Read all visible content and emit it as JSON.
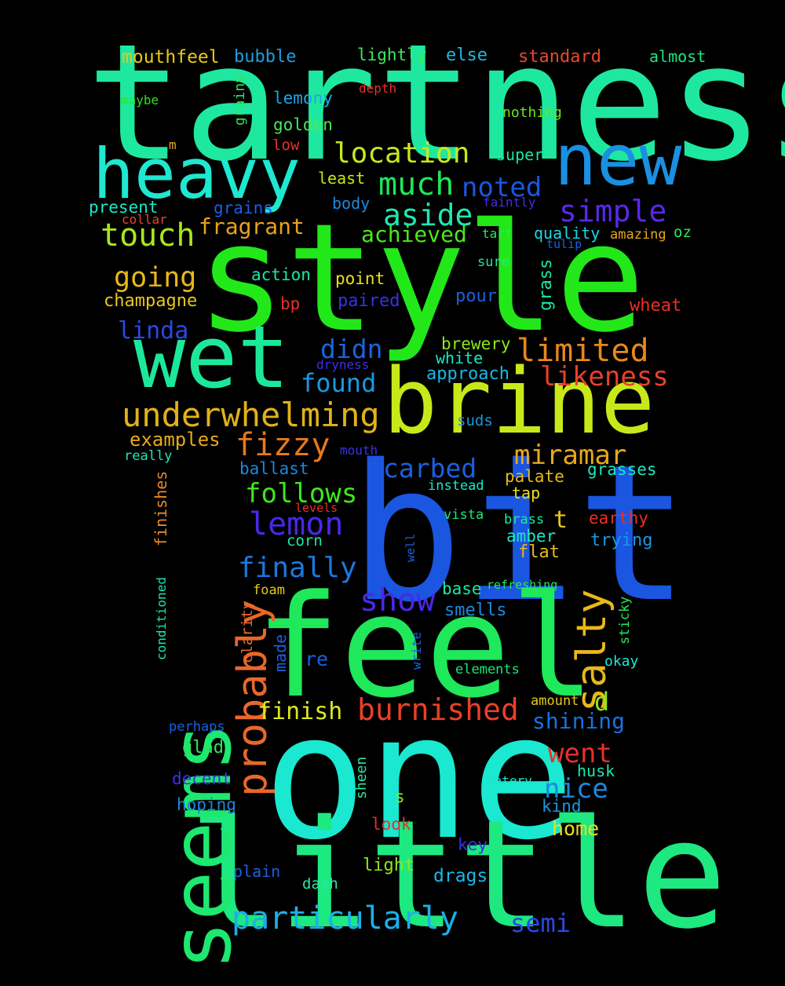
{
  "words": [
    {
      "text": "tartness",
      "color": "#1ee8a0",
      "rotate": false
    },
    {
      "text": "style",
      "color": "#22e81a",
      "rotate": false
    },
    {
      "text": "bit",
      "color": "#1a56e0",
      "rotate": false
    },
    {
      "text": "one",
      "color": "#1ae8d0",
      "rotate": false
    },
    {
      "text": "feel",
      "color": "#1fe85a",
      "rotate": false
    },
    {
      "text": "little",
      "color": "#1ee880",
      "rotate": false
    },
    {
      "text": "wet",
      "color": "#1de89a",
      "rotate": false
    },
    {
      "text": "brine",
      "color": "#c8e81a",
      "rotate": false
    },
    {
      "text": "seems",
      "color": "#1de870",
      "rotate": true
    },
    {
      "text": "heavy",
      "color": "#1ee8d0",
      "rotate": false
    },
    {
      "text": "new",
      "color": "#1a90e0",
      "rotate": false
    },
    {
      "text": "underwhelming",
      "color": "#e0b21a",
      "rotate": false
    },
    {
      "text": "particularly",
      "color": "#1ab0e8",
      "rotate": false
    },
    {
      "text": "location",
      "color": "#c8e81a",
      "rotate": false
    },
    {
      "text": "much",
      "color": "#1de85a",
      "rotate": false
    },
    {
      "text": "aside",
      "color": "#1ee8b0",
      "rotate": false
    },
    {
      "text": "touch",
      "color": "#a8e81a",
      "rotate": false
    },
    {
      "text": "noted",
      "color": "#1a56e0",
      "rotate": false
    },
    {
      "text": "simple",
      "color": "#5a28e8",
      "rotate": false
    },
    {
      "text": "fragrant",
      "color": "#e8a21a",
      "rotate": false
    },
    {
      "text": "achieved",
      "color": "#4ce81a",
      "rotate": false
    },
    {
      "text": "going",
      "color": "#e8b81a",
      "rotate": false
    },
    {
      "text": "limited",
      "color": "#e8881a",
      "rotate": false
    },
    {
      "text": "likeness",
      "color": "#e8402a",
      "rotate": false
    },
    {
      "text": "didn",
      "color": "#1a64e0",
      "rotate": false
    },
    {
      "text": "found",
      "color": "#1a98e0",
      "rotate": false
    },
    {
      "text": "fizzy",
      "color": "#e8781a",
      "rotate": false
    },
    {
      "text": "miramar",
      "color": "#e8a81a",
      "rotate": false
    },
    {
      "text": "carbed",
      "color": "#1a60e0",
      "rotate": false
    },
    {
      "text": "follows",
      "color": "#3ee81a",
      "rotate": false
    },
    {
      "text": "lemon",
      "color": "#4a28e8",
      "rotate": false
    },
    {
      "text": "finally",
      "color": "#1a78e0",
      "rotate": false
    },
    {
      "text": "show",
      "color": "#4a28e8",
      "rotate": false
    },
    {
      "text": "salty",
      "color": "#e8b81a",
      "rotate": true
    },
    {
      "text": "probably",
      "color": "#e8682a",
      "rotate": true
    },
    {
      "text": "burnished",
      "color": "#e8402a",
      "rotate": false
    },
    {
      "text": "went",
      "color": "#e8302a",
      "rotate": false
    },
    {
      "text": "nice",
      "color": "#1a88e0",
      "rotate": false
    },
    {
      "text": "semi",
      "color": "#2a48e8",
      "rotate": false
    },
    {
      "text": "finish",
      "color": "#dce81a",
      "rotate": false
    },
    {
      "text": "shining",
      "color": "#1a70e0",
      "rotate": false
    },
    {
      "text": "mouthfeel",
      "color": "#e8c81a",
      "rotate": false
    },
    {
      "text": "bubble",
      "color": "#1aa0e0",
      "rotate": false
    },
    {
      "text": "lightly",
      "color": "#3ee85a",
      "rotate": false
    },
    {
      "text": "else",
      "color": "#1ab8e0",
      "rotate": false
    },
    {
      "text": "standard",
      "color": "#e8482a",
      "rotate": false
    },
    {
      "text": "almost",
      "color": "#1ae878",
      "rotate": false
    },
    {
      "text": "maybe",
      "color": "#2ae81a",
      "rotate": false
    },
    {
      "text": "depth",
      "color": "#e8302a",
      "rotate": false
    },
    {
      "text": "nothing",
      "color": "#6ae81a",
      "rotate": false
    },
    {
      "text": "grainy",
      "color": "#2ae85a",
      "rotate": true
    },
    {
      "text": "lemony",
      "color": "#1aa8e8",
      "rotate": false
    },
    {
      "text": "golden",
      "color": "#4ae85a",
      "rotate": false
    },
    {
      "text": "m",
      "color": "#e8a81a",
      "rotate": false
    },
    {
      "text": "low",
      "color": "#e8302a",
      "rotate": false
    },
    {
      "text": "super",
      "color": "#1ae8a0",
      "rotate": false
    },
    {
      "text": "least",
      "color": "#c8e81a",
      "rotate": false
    },
    {
      "text": "present",
      "color": "#1ae8c8",
      "rotate": false
    },
    {
      "text": "collar",
      "color": "#e8482a",
      "rotate": false
    },
    {
      "text": "grains",
      "color": "#1a60e0",
      "rotate": false
    },
    {
      "text": "body",
      "color": "#1a88e0",
      "rotate": false
    },
    {
      "text": "faintly",
      "color": "#4a28e8",
      "rotate": false
    },
    {
      "text": "tart",
      "color": "#2ae85a",
      "rotate": false
    },
    {
      "text": "quality",
      "color": "#1ad8e8",
      "rotate": false
    },
    {
      "text": "amazing",
      "color": "#e8a81a",
      "rotate": false
    },
    {
      "text": "oz",
      "color": "#2ae85a",
      "rotate": false
    },
    {
      "text": "tulip",
      "color": "#1a60e0",
      "rotate": false
    },
    {
      "text": "sure",
      "color": "#1ae8a0",
      "rotate": false
    },
    {
      "text": "action",
      "color": "#1ae8a0",
      "rotate": false
    },
    {
      "text": "point",
      "color": "#e8e01a",
      "rotate": false
    },
    {
      "text": "grass",
      "color": "#1ae8a0",
      "rotate": true
    },
    {
      "text": "champagne",
      "color": "#e8c81a",
      "rotate": false
    },
    {
      "text": "bp",
      "color": "#e8302a",
      "rotate": false
    },
    {
      "text": "paired",
      "color": "#3a30e8",
      "rotate": false
    },
    {
      "text": "pour",
      "color": "#1a60e0",
      "rotate": false
    },
    {
      "text": "wheat",
      "color": "#e8302a",
      "rotate": false
    },
    {
      "text": "linda",
      "color": "#2a48e8",
      "rotate": false
    },
    {
      "text": "brewery",
      "color": "#8ee81a",
      "rotate": false
    },
    {
      "text": "white",
      "color": "#1ae8c8",
      "rotate": false
    },
    {
      "text": "dryness",
      "color": "#3a30e8",
      "rotate": false
    },
    {
      "text": "approach",
      "color": "#1ab8e8",
      "rotate": false
    },
    {
      "text": "suds",
      "color": "#1a98e0",
      "rotate": false
    },
    {
      "text": "examples",
      "color": "#e8a81a",
      "rotate": false
    },
    {
      "text": "really",
      "color": "#1ae8b0",
      "rotate": false
    },
    {
      "text": "mouth",
      "color": "#3a30e8",
      "rotate": false
    },
    {
      "text": "ballast",
      "color": "#1a88e0",
      "rotate": false
    },
    {
      "text": "palate",
      "color": "#e8b81a",
      "rotate": false
    },
    {
      "text": "grasses",
      "color": "#1ae8c0",
      "rotate": false
    },
    {
      "text": "instead",
      "color": "#1ae8c8",
      "rotate": false
    },
    {
      "text": "tap",
      "color": "#e8e01a",
      "rotate": false
    },
    {
      "text": "finishes",
      "color": "#e8882a",
      "rotate": true
    },
    {
      "text": "levels",
      "color": "#e8302a",
      "rotate": false
    },
    {
      "text": "vista",
      "color": "#1ae878",
      "rotate": false
    },
    {
      "text": "t",
      "color": "#e8c81a",
      "rotate": false
    },
    {
      "text": "brass",
      "color": "#1ae8a0",
      "rotate": false
    },
    {
      "text": "earthy",
      "color": "#e8302a",
      "rotate": false
    },
    {
      "text": "corn",
      "color": "#1ae8b0",
      "rotate": false
    },
    {
      "text": "well",
      "color": "#1a60e0",
      "rotate": true
    },
    {
      "text": "amber",
      "color": "#1ae8c8",
      "rotate": false
    },
    {
      "text": "trying",
      "color": "#1a98e0",
      "rotate": false
    },
    {
      "text": "flat",
      "color": "#e8b81a",
      "rotate": false
    },
    {
      "text": "conditioned",
      "color": "#1ae8b0",
      "rotate": true
    },
    {
      "text": "refreshing",
      "color": "#2ae85a",
      "rotate": false
    },
    {
      "text": "foam",
      "color": "#e8c81a",
      "rotate": false
    },
    {
      "text": "base",
      "color": "#1ae8a0",
      "rotate": false
    },
    {
      "text": "smells",
      "color": "#1a88e0",
      "rotate": false
    },
    {
      "text": "sticky",
      "color": "#2ae85a",
      "rotate": true
    },
    {
      "text": "clarity",
      "color": "#e8682a",
      "rotate": true
    },
    {
      "text": "made",
      "color": "#1a60e0",
      "rotate": true
    },
    {
      "text": "re",
      "color": "#1a60e0",
      "rotate": false
    },
    {
      "text": "write",
      "color": "#1a60e0",
      "rotate": true
    },
    {
      "text": "okay",
      "color": "#1ae8d8",
      "rotate": false
    },
    {
      "text": "elements",
      "color": "#1ae878",
      "rotate": false
    },
    {
      "text": "d",
      "color": "#8ee81a",
      "rotate": false
    },
    {
      "text": "amount",
      "color": "#e8c81a",
      "rotate": false
    },
    {
      "text": "perhaps",
      "color": "#1a60e0",
      "rotate": false
    },
    {
      "text": "glad",
      "color": "#2ae85a",
      "rotate": false
    },
    {
      "text": "husk",
      "color": "#1ae8b0",
      "rotate": false
    },
    {
      "text": "decent",
      "color": "#3a30e8",
      "rotate": false
    },
    {
      "text": "watery",
      "color": "#1ae8c8",
      "rotate": false
    },
    {
      "text": "hoping",
      "color": "#1a88e0",
      "rotate": false
    },
    {
      "text": "sheen",
      "color": "#2ae8a0",
      "rotate": true
    },
    {
      "text": "s",
      "color": "#8ee81a",
      "rotate": false
    },
    {
      "text": "kind",
      "color": "#1a98e0",
      "rotate": false
    },
    {
      "text": "look",
      "color": "#e8302a",
      "rotate": false
    },
    {
      "text": "home",
      "color": "#e8e01a",
      "rotate": false
    },
    {
      "text": "key",
      "color": "#3a30e8",
      "rotate": false
    },
    {
      "text": "plain",
      "color": "#1a60e0",
      "rotate": false
    },
    {
      "text": "light",
      "color": "#8ee81a",
      "rotate": false
    },
    {
      "text": "drags",
      "color": "#1ab8e8",
      "rotate": false
    },
    {
      "text": "dash",
      "color": "#2ae8a0",
      "rotate": false
    }
  ]
}
